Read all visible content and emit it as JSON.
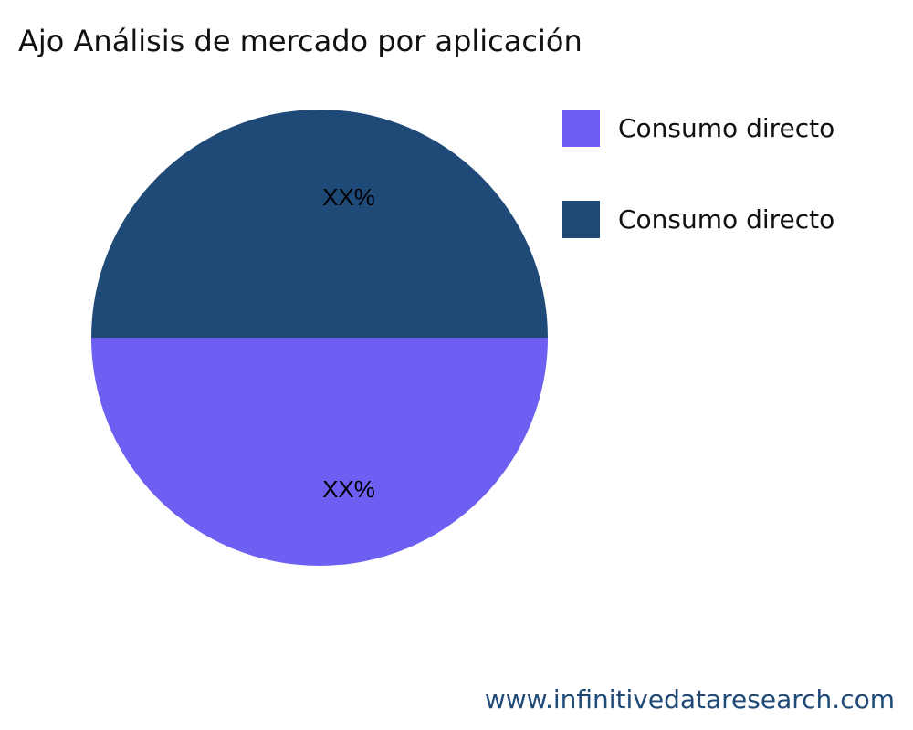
{
  "chart_data": {
    "type": "pie",
    "title": "Ajo Análisis de mercado por aplicación",
    "slices": [
      {
        "name": "Consumo directo",
        "value": 50,
        "label": "XX%",
        "color": "#6C5FF2"
      },
      {
        "name": "Consumo directo",
        "value": 50,
        "label": "XX%",
        "color": "#1F4A78"
      }
    ],
    "legend_placement": "top-right"
  },
  "footer": "www.infinitivedataresearch.com"
}
